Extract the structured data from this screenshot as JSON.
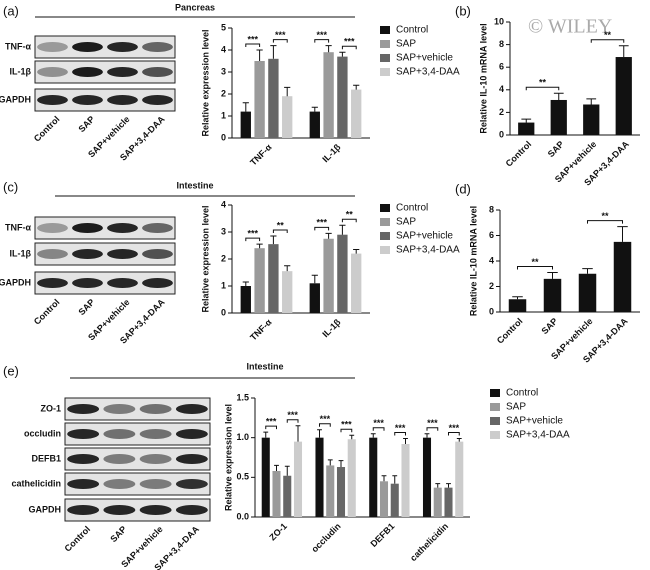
{
  "panel_labels": [
    "(a)",
    "(b)",
    "(c)",
    "(d)",
    "(e)"
  ],
  "watermark": "© WILEY",
  "blots": [
    {
      "tissue": "Pancreas",
      "rows": [
        "TNF-α",
        "IL-1β",
        "GAPDH"
      ],
      "lanes": [
        "Control",
        "SAP",
        "SAP+vehicle",
        "SAP+3,4-DAA"
      ]
    },
    {
      "tissue": "Intestine",
      "rows": [
        "TNF-α",
        "IL-1β",
        "GAPDH"
      ],
      "lanes": [
        "Control",
        "SAP",
        "SAP+vehicle",
        "SAP+3,4-DAA"
      ]
    },
    {
      "tissue": "Intestine",
      "rows": [
        "ZO-1",
        "occludin",
        "DEFB1",
        "cathelicidin",
        "GAPDH"
      ],
      "lanes": [
        "Control",
        "SAP",
        "SAP+vehicle",
        "SAP+3,4-DAA"
      ]
    }
  ],
  "chart_data": [
    {
      "type": "bar",
      "ylabel": "Relative expression level",
      "categories": [
        "TNF-α",
        "IL-1β"
      ],
      "series": [
        {
          "name": "Control",
          "color": "#111111",
          "values": [
            1.2,
            1.2
          ],
          "errors": [
            0.4,
            0.2
          ]
        },
        {
          "name": "SAP",
          "color": "#9a9a9a",
          "values": [
            3.5,
            3.9
          ],
          "errors": [
            0.5,
            0.3
          ]
        },
        {
          "name": "SAP+vehicle",
          "color": "#666666",
          "values": [
            3.6,
            3.7
          ],
          "errors": [
            0.6,
            0.2
          ]
        },
        {
          "name": "SAP+3,4-DAA",
          "color": "#cccccc",
          "values": [
            1.9,
            2.2
          ],
          "errors": [
            0.4,
            0.2
          ]
        }
      ],
      "ylim": [
        0,
        5
      ],
      "yticks": [
        0,
        1,
        2,
        3,
        4,
        5
      ],
      "legend": "right",
      "significance": [
        [
          "***",
          "***"
        ],
        [
          "***",
          "***"
        ]
      ]
    },
    {
      "type": "bar",
      "ylabel": "Relative IL-10 mRNA level",
      "categories": [
        "Control",
        "SAP",
        "SAP+vehicle",
        "SAP+3,4-DAA"
      ],
      "values": [
        1.1,
        3.1,
        2.7,
        6.9
      ],
      "errors": [
        0.3,
        0.6,
        0.5,
        1.0
      ],
      "color": "#111111",
      "ylim": [
        0,
        10
      ],
      "yticks": [
        0,
        2,
        4,
        6,
        8,
        10
      ],
      "significance": [
        "**",
        "**"
      ]
    },
    {
      "type": "bar",
      "ylabel": "Relative expression level",
      "categories": [
        "TNF-α",
        "IL-1β"
      ],
      "series": [
        {
          "name": "Control",
          "color": "#111111",
          "values": [
            1.0,
            1.1
          ],
          "errors": [
            0.15,
            0.3
          ]
        },
        {
          "name": "SAP",
          "color": "#9a9a9a",
          "values": [
            2.4,
            2.75
          ],
          "errors": [
            0.15,
            0.2
          ]
        },
        {
          "name": "SAP+vehicle",
          "color": "#666666",
          "values": [
            2.55,
            2.9
          ],
          "errors": [
            0.3,
            0.35
          ]
        },
        {
          "name": "SAP+3,4-DAA",
          "color": "#cccccc",
          "values": [
            1.55,
            2.2
          ],
          "errors": [
            0.2,
            0.15
          ]
        }
      ],
      "ylim": [
        0,
        4
      ],
      "yticks": [
        0,
        1,
        2,
        3,
        4
      ],
      "legend": "right",
      "significance": [
        [
          "***",
          "**"
        ],
        [
          "***",
          "**"
        ]
      ]
    },
    {
      "type": "bar",
      "ylabel": "Relative IL-10 mRNA level",
      "categories": [
        "Control",
        "SAP",
        "SAP+vehicle",
        "SAP+3,4-DAA"
      ],
      "values": [
        1.0,
        2.6,
        3.0,
        5.5
      ],
      "errors": [
        0.2,
        0.5,
        0.4,
        1.2
      ],
      "color": "#111111",
      "ylim": [
        0,
        8
      ],
      "yticks": [
        0,
        2,
        4,
        6,
        8
      ],
      "significance": [
        "**",
        "**"
      ]
    },
    {
      "type": "bar",
      "ylabel": "Relative expression level",
      "categories": [
        "ZO-1",
        "occludin",
        "DEFB1",
        "cathelicidin"
      ],
      "series": [
        {
          "name": "Control",
          "color": "#111111",
          "values": [
            1.0,
            1.0,
            1.0,
            1.0
          ],
          "errors": [
            0.07,
            0.1,
            0.05,
            0.05
          ]
        },
        {
          "name": "SAP",
          "color": "#9a9a9a",
          "values": [
            0.58,
            0.65,
            0.45,
            0.37
          ],
          "errors": [
            0.07,
            0.07,
            0.07,
            0.05
          ]
        },
        {
          "name": "SAP+vehicle",
          "color": "#666666",
          "values": [
            0.52,
            0.63,
            0.42,
            0.37
          ],
          "errors": [
            0.12,
            0.08,
            0.1,
            0.05
          ]
        },
        {
          "name": "SAP+3,4-DAA",
          "color": "#cccccc",
          "values": [
            0.95,
            0.98,
            0.92,
            0.95
          ],
          "errors": [
            0.2,
            0.05,
            0.07,
            0.04
          ]
        }
      ],
      "ylim": [
        0,
        1.5
      ],
      "yticks": [
        {
          "value": 0,
          "label": "0.0"
        },
        0.5,
        {
          "value": 1,
          "label": "1.0"
        },
        1.5
      ],
      "legend": "right",
      "significance": [
        [
          "***",
          "***"
        ],
        [
          "***",
          "***"
        ],
        [
          "***",
          "***"
        ],
        [
          "***",
          "***"
        ]
      ]
    }
  ]
}
